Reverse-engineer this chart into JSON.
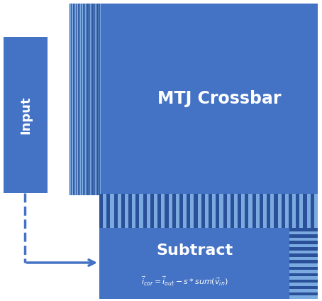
{
  "bg_color": "#ffffff",
  "blue_main": "#4472C4",
  "blue_dark": "#2A4F9A",
  "blue_light": "#7AAAE0",
  "blue_stripe_dark": "#2A5099",
  "blue_stripe_light": "#7AAAE0",
  "fig_w": 4.54,
  "fig_h": 4.24,
  "dpi": 100,
  "mtj_label": "MTJ Crossbar",
  "input_label": "Input",
  "subtract_label": "Subtract",
  "formula": "$\\vec{i}_{cor} = \\vec{i}_{out} - s * sum(\\vec{v}_{in})$"
}
